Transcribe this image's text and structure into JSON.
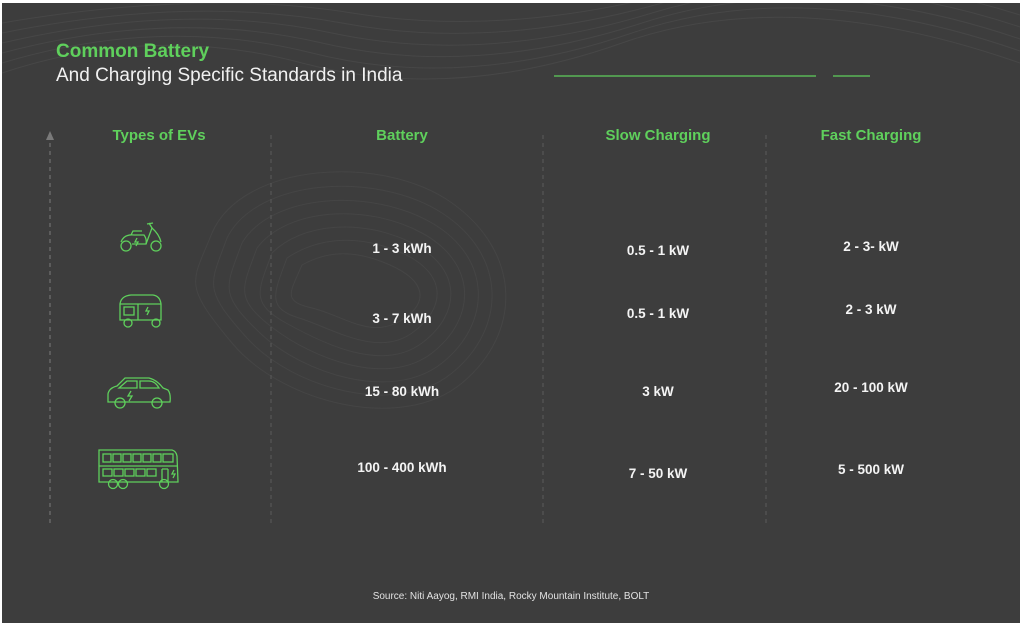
{
  "header": {
    "title": "Common Battery",
    "subtitle": "And Charging Specific Standards in India"
  },
  "table": {
    "columns": [
      "Types of EVs",
      "Battery",
      "Slow Charging",
      "Fast Charging"
    ],
    "rows": [
      {
        "vehicle_icon": "scooter-icon",
        "battery": "1 - 3 kWh",
        "slow": "0.5 - 1 kW",
        "fast": "2 - 3- kW"
      },
      {
        "vehicle_icon": "auto-rickshaw-icon",
        "battery": "3 - 7 kWh",
        "slow": "0.5 - 1 kW",
        "fast": "2 - 3 kW"
      },
      {
        "vehicle_icon": "car-icon",
        "battery": "15 - 80 kWh",
        "slow": "3 kW",
        "fast": "20 - 100 kW"
      },
      {
        "vehicle_icon": "double-decker-bus-icon",
        "battery": "100 - 400 kWh",
        "slow": "7 - 50 kW",
        "fast": "5 - 500 kW"
      }
    ]
  },
  "source": "Source: Niti Aayog, RMI India, Rocky Mountain Institute, BOLT",
  "colors": {
    "background": "#3d3d3d",
    "accent": "#5fd05c",
    "text": "#f4f4f4"
  }
}
